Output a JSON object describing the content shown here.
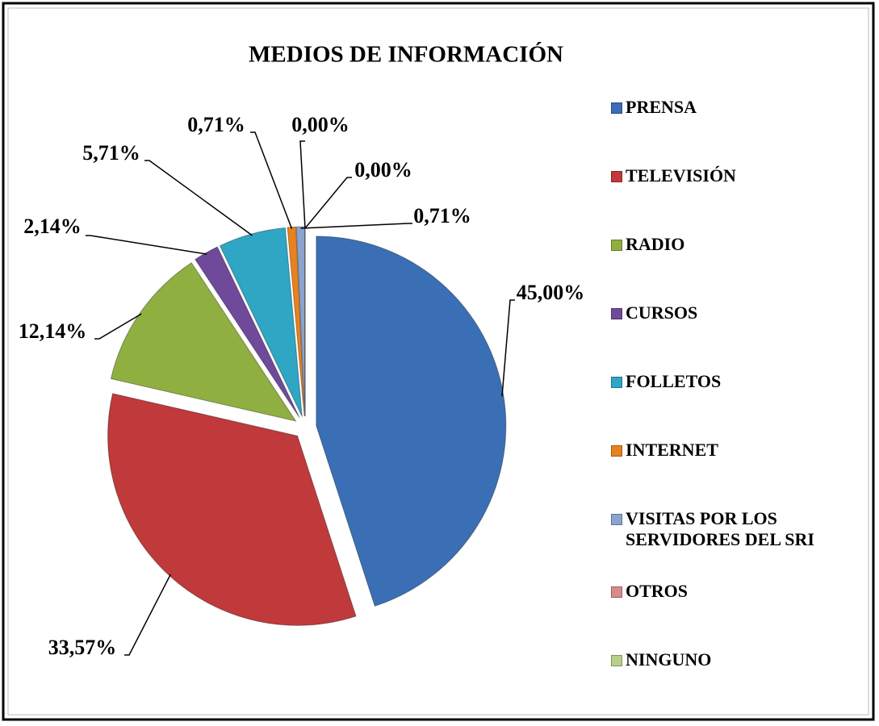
{
  "chart_data": {
    "type": "pie",
    "title": "MEDIOS DE INFORMACIÓN",
    "categories": [
      "PRENSA",
      "TELEVISIÓN",
      "RADIO",
      "CURSOS",
      "FOLLETOS",
      "INTERNET",
      "VISITAS POR LOS SERVIDORES DEL SRI",
      "OTROS",
      "NINGUNO"
    ],
    "values": [
      45.0,
      33.57,
      12.14,
      2.14,
      5.71,
      0.71,
      0.71,
      0.0,
      0.0
    ],
    "value_labels": [
      "45,00%",
      "33,57%",
      "12,14%",
      "2,14%",
      "5,71%",
      "0,71%",
      "0,71%",
      "0,00%",
      "0,00%"
    ],
    "colors": [
      "#3a6fb5",
      "#c0393b",
      "#8fb040",
      "#6f4a9a",
      "#2fa6c4",
      "#e8821e",
      "#8aa3cf",
      "#d98b8b",
      "#b8cf8a"
    ],
    "legend": "right"
  }
}
